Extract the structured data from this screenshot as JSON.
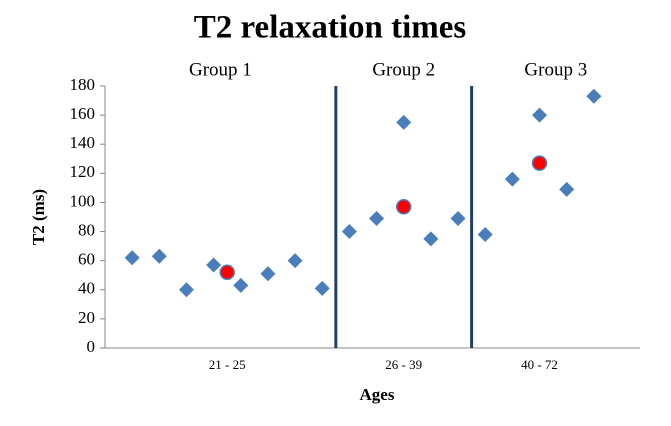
{
  "chart_data": {
    "type": "scatter",
    "title": "T2 relaxation times",
    "xlabel": "Ages",
    "ylabel": "T2 (ms)",
    "xlim": [
      0,
      19.7
    ],
    "ylim": [
      0,
      180
    ],
    "yticks": [
      0,
      20,
      40,
      60,
      80,
      100,
      120,
      140,
      160,
      180
    ],
    "xticks": [
      {
        "value": 4.5,
        "label": "21 - 25"
      },
      {
        "value": 11,
        "label": "26 - 39"
      },
      {
        "value": 16,
        "label": "40 - 72"
      }
    ],
    "groups": [
      "Group 1",
      "Group 2",
      "Group 3"
    ],
    "dividers": [
      8.5,
      13.5
    ],
    "divider_color": "#1f3f66",
    "series": [
      {
        "marker": "diamond",
        "color": "#4a7ebb",
        "x": [
          1,
          2,
          3,
          4,
          5,
          6,
          7,
          8,
          9,
          10,
          11,
          12,
          13,
          14,
          15,
          16,
          17,
          18
        ],
        "values": [
          62,
          63,
          40,
          57,
          43,
          51,
          60,
          41,
          80,
          89,
          155,
          75,
          89,
          78,
          116,
          160,
          109,
          173
        ]
      },
      {
        "marker": "circle",
        "color": "#ff0000",
        "x": [
          4.5,
          11,
          16
        ],
        "values": [
          52,
          97,
          127
        ]
      }
    ]
  }
}
